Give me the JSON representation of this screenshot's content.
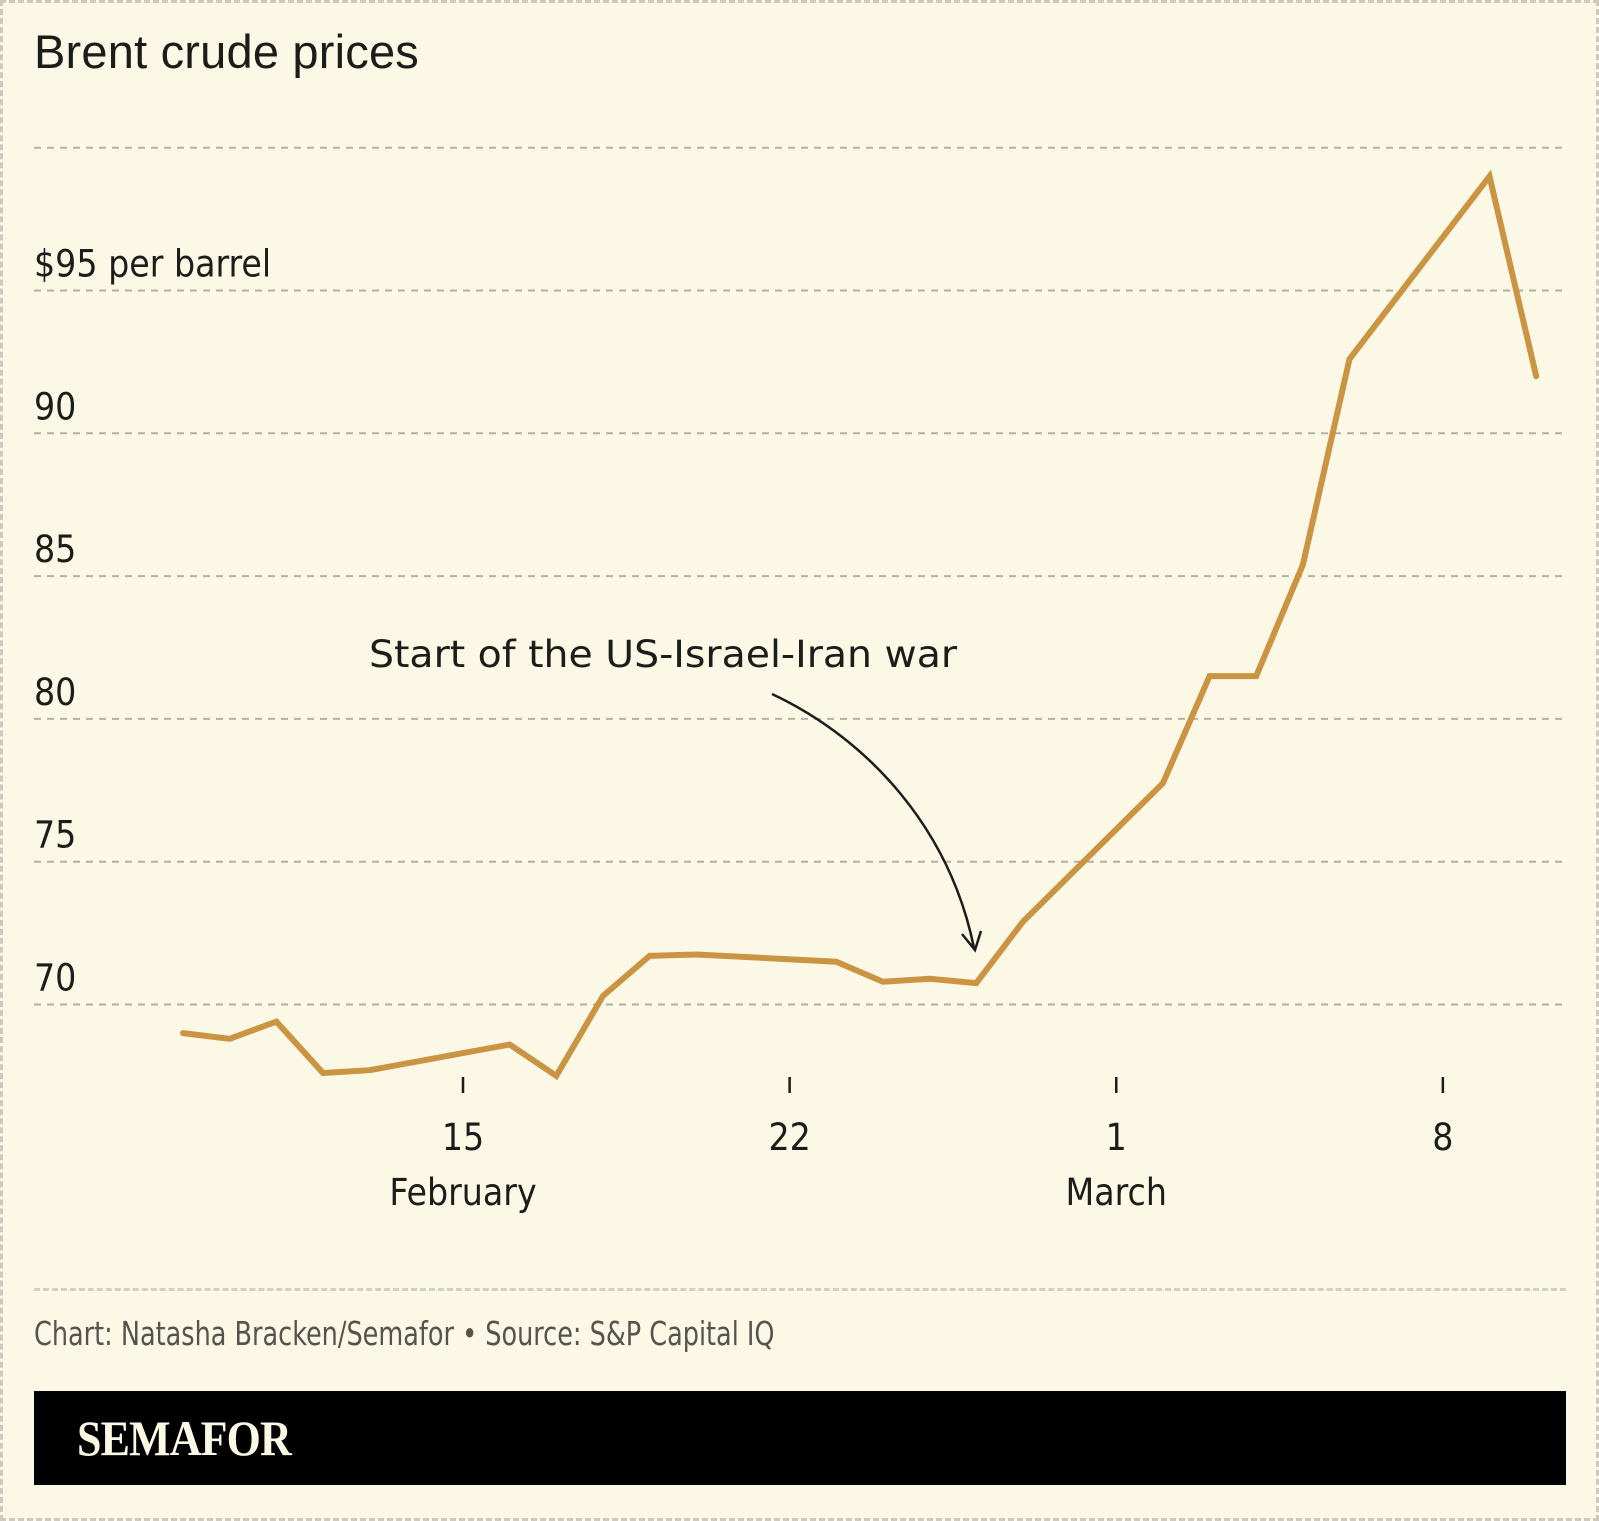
{
  "colors": {
    "background": "#fbf8e6",
    "line": "#cb9443",
    "gridline": "#b3b1a3",
    "text": "#1c1c1a",
    "credit_text": "#55534c",
    "brand_bar": "#000000",
    "brand_text": "#fbf8e6"
  },
  "chart_data": {
    "type": "line",
    "title": "Brent crude prices",
    "ylabel": "$95 per barrel",
    "y_unit_label": "$95 per barrel",
    "ylim": [
      65,
      100
    ],
    "yticks": [
      70,
      75,
      80,
      85,
      90,
      95,
      100
    ],
    "ytick_labels": [
      "70",
      "75",
      "80",
      "85",
      "90",
      "$95 per barrel",
      ""
    ],
    "grid": true,
    "x_day_offset_reference": "February 15",
    "xticks": [
      {
        "day": 0,
        "label": "15",
        "month": "February"
      },
      {
        "day": 7,
        "label": "22",
        "month": ""
      },
      {
        "day": 14,
        "label": "1",
        "month": "March"
      },
      {
        "day": 21,
        "label": "8",
        "month": ""
      }
    ],
    "series": [
      {
        "name": "Brent crude",
        "points": [
          {
            "date": "Feb 9",
            "day": -6,
            "value": 69.0
          },
          {
            "date": "Feb 10",
            "day": -5,
            "value": 68.8
          },
          {
            "date": "Feb 11",
            "day": -4,
            "value": 69.4
          },
          {
            "date": "Feb 12",
            "day": -3,
            "value": 67.6
          },
          {
            "date": "Feb 13",
            "day": -2,
            "value": 67.7
          },
          {
            "date": "Feb 16",
            "day": 1,
            "value": 68.6
          },
          {
            "date": "Feb 17",
            "day": 2,
            "value": 67.5
          },
          {
            "date": "Feb 18",
            "day": 3,
            "value": 70.3
          },
          {
            "date": "Feb 19",
            "day": 4,
            "value": 71.7
          },
          {
            "date": "Feb 20",
            "day": 5,
            "value": 71.75
          },
          {
            "date": "Feb 23",
            "day": 8,
            "value": 71.5
          },
          {
            "date": "Feb 24",
            "day": 9,
            "value": 70.8
          },
          {
            "date": "Feb 25",
            "day": 10,
            "value": 70.9
          },
          {
            "date": "Feb 26",
            "day": 11,
            "value": 70.75
          },
          {
            "date": "Feb 27",
            "day": 12,
            "value": 72.9
          },
          {
            "date": "Mar 2",
            "day": 15,
            "value": 77.75
          },
          {
            "date": "Mar 3",
            "day": 16,
            "value": 81.5
          },
          {
            "date": "Mar 4",
            "day": 17,
            "value": 81.5
          },
          {
            "date": "Mar 5",
            "day": 18,
            "value": 85.4
          },
          {
            "date": "Mar 6",
            "day": 19,
            "value": 92.6
          },
          {
            "date": "Mar 9",
            "day": 22,
            "value": 99.0
          },
          {
            "date": "Mar 10",
            "day": 23,
            "value": 92.0
          }
        ]
      }
    ],
    "annotations": [
      {
        "text": "Start of the US-Israel-Iran war",
        "target_day": 11,
        "target_value": 71.5
      }
    ]
  },
  "footer": {
    "credit": "Chart: Natasha Bracken/Semafor • Source: S&P Capital IQ",
    "brand": "SEMAFOR"
  }
}
